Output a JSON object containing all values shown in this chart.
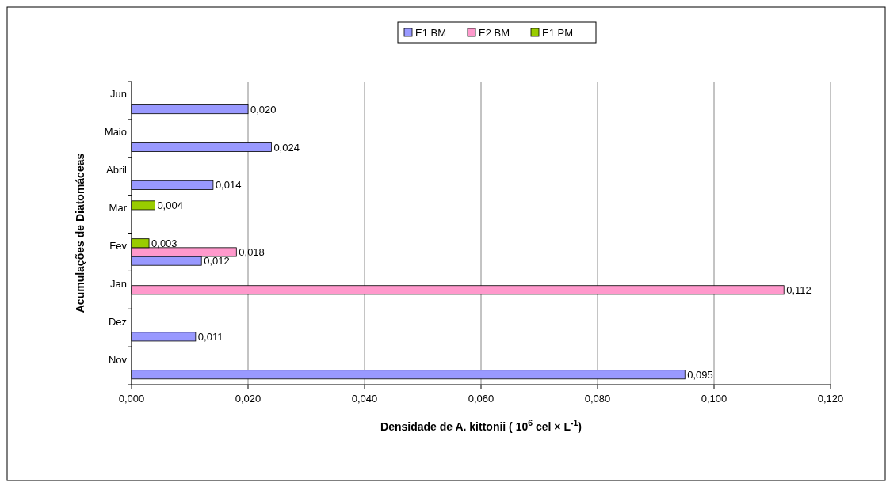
{
  "chart_data": {
    "type": "bar",
    "orientation": "horizontal",
    "xlabel": "Densidade de A. kittonii ( 10$^{6}$ cel × L$^{-1}$)",
    "ylabel": "Acumulações de Diatomáceas",
    "categories": [
      "Jun",
      "Maio",
      "Abril",
      "Mar",
      "Fev",
      "Jan",
      "Dez",
      "Nov"
    ],
    "series": [
      {
        "name": "E1 BM",
        "color": "#9999ff",
        "values": [
          0.02,
          0.024,
          0.014,
          null,
          0.012,
          null,
          0.011,
          0.095
        ],
        "value_labels": [
          "0,020",
          "0,024",
          "0,014",
          null,
          "0,012",
          null,
          "0,011",
          "0,095"
        ]
      },
      {
        "name": "E2 BM",
        "color": "#ff99cc",
        "values": [
          null,
          null,
          null,
          null,
          0.018,
          0.112,
          null,
          null
        ],
        "value_labels": [
          null,
          null,
          null,
          null,
          "0,018",
          "0,112",
          null,
          null
        ]
      },
      {
        "name": "E1 PM",
        "color": "#99cc00",
        "values": [
          null,
          null,
          null,
          0.004,
          0.003,
          null,
          null,
          null
        ],
        "value_labels": [
          null,
          null,
          null,
          "0,004",
          "0,003",
          null,
          null,
          null
        ]
      }
    ],
    "xlim": [
      0,
      0.12
    ],
    "xticks": [
      {
        "value": 0,
        "label": "0,000"
      },
      {
        "value": 0.02,
        "label": "0,020"
      },
      {
        "value": 0.04,
        "label": "0,040"
      },
      {
        "value": 0.06,
        "label": "0,060"
      },
      {
        "value": 0.08,
        "label": "0,080"
      },
      {
        "value": 0.1,
        "label": "0,100"
      },
      {
        "value": 0.12,
        "label": "0,120"
      }
    ],
    "grid": "x",
    "legend": "top"
  }
}
